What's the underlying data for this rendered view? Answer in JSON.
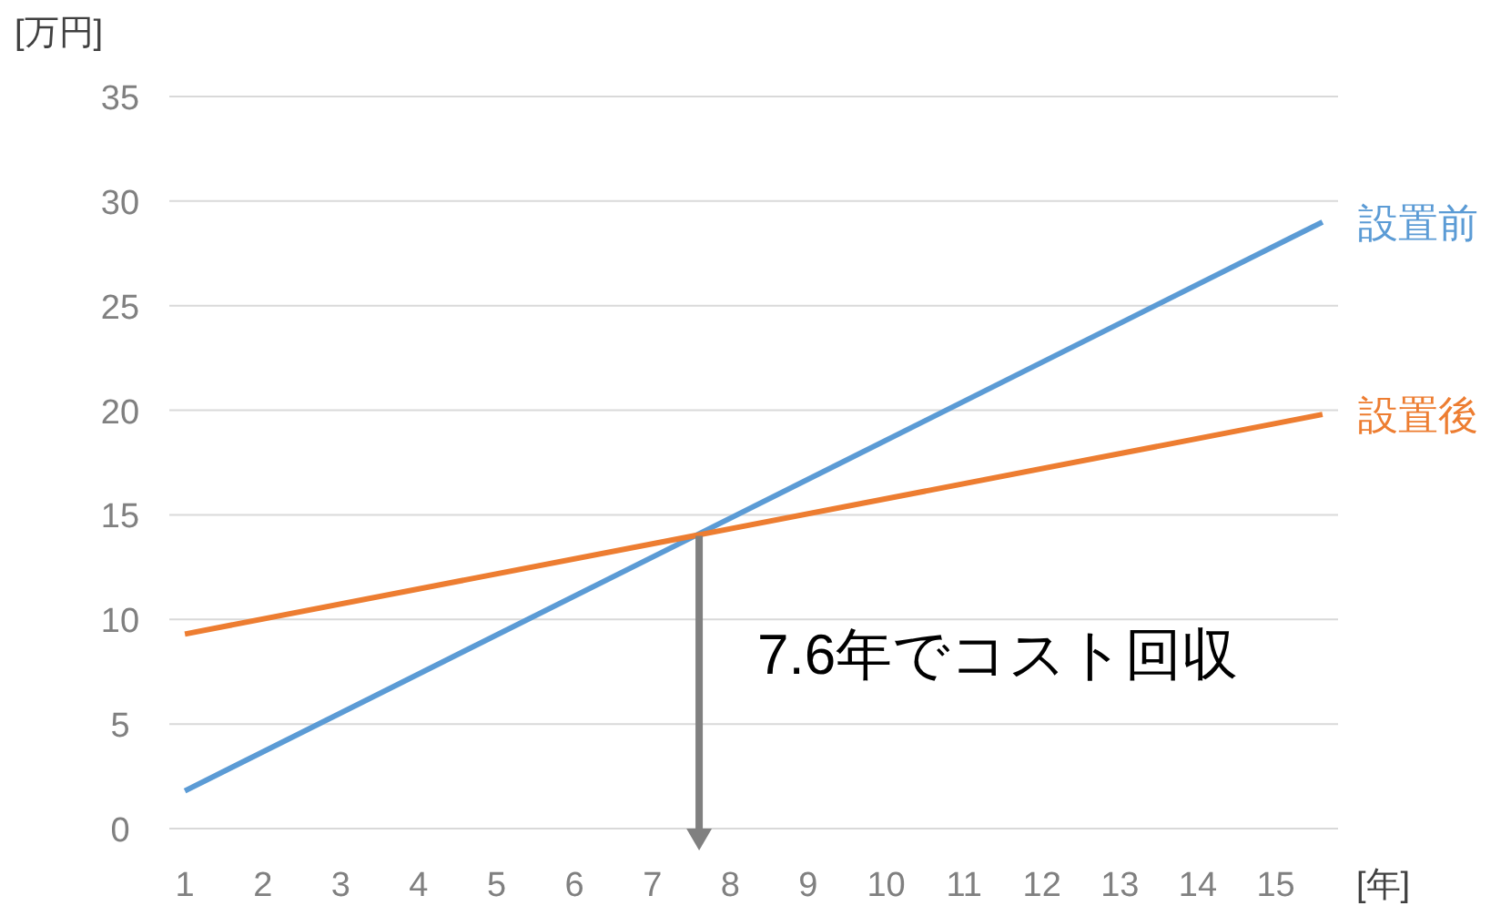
{
  "chart_data": {
    "type": "line",
    "xlabel": "[年]",
    "ylabel": "[万円]",
    "x": [
      1,
      15.6
    ],
    "series": [
      {
        "name": "設置前",
        "color": "#5b9bd5",
        "values": [
          1.8,
          29.0
        ]
      },
      {
        "name": "設置後",
        "color": "#ed7d31",
        "values": [
          9.3,
          19.8
        ]
      }
    ],
    "xlim": [
      0.8,
      15.8
    ],
    "xticks": [
      1,
      2,
      3,
      4,
      5,
      6,
      7,
      8,
      9,
      10,
      11,
      12,
      13,
      14,
      15
    ],
    "ylim": [
      0,
      35
    ],
    "yticks": [
      0,
      5,
      10,
      15,
      20,
      25,
      30,
      35
    ],
    "grid": "y",
    "marker": "none",
    "line_style": "solid",
    "annotations": [
      {
        "text": "7.6年でコスト回収",
        "x": 7.6,
        "y": 14
      }
    ]
  }
}
